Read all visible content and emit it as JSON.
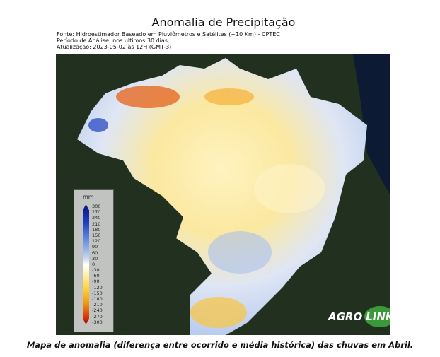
{
  "title": "Anomalia de Precipitação",
  "meta": {
    "source": "Fonte: Hidroestimador Baseado em Pluviômetros e Satélites (~10 Km) - CPTEC",
    "period": "Período de Análise: nos ultimos 30 dias",
    "updated": "Atualização: 2023-05-02 às 12H (GMT-3)"
  },
  "legend": {
    "unit": "mm",
    "ticks": [
      "300",
      "270",
      "240",
      "210",
      "180",
      "150",
      "120",
      "90",
      "60",
      "30",
      "0",
      "-30",
      "-60",
      "-90",
      "-120",
      "-150",
      "-180",
      "-210",
      "-240",
      "-270",
      "-300"
    ]
  },
  "logo": {
    "part1": "AGRO",
    "part2": "LINK"
  },
  "caption": "Mapa de anomalia (diferença entre ocorrido e média histórica) das chuvas em Abril.",
  "colors": {
    "wet": "#1e3fc0",
    "dry": "#d42b0a",
    "neutral": "#ffffff"
  }
}
